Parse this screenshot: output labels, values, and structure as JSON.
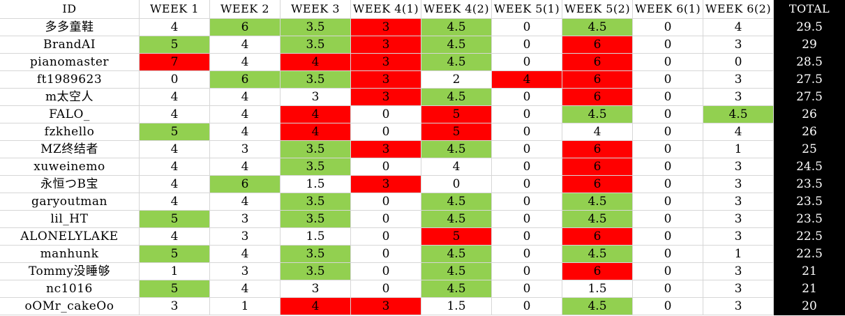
{
  "headers": [
    "ID",
    "WEEK 1",
    "WEEK 2",
    "WEEK 3",
    "WEEK 4(1)",
    "WEEK 4(2)",
    "WEEK 5(1)",
    "WEEK 5(2)",
    "WEEK 6(1)",
    "WEEK 6(2)",
    "TOTAL"
  ],
  "colors": {
    "green": "#92d050",
    "red": "#ff0000",
    "white": "#ffffff",
    "total_bg": "#000000",
    "total_fg": "#ffffff"
  },
  "rows": [
    {
      "id": "多多童鞋",
      "values": [
        "4",
        "6",
        "3.5",
        "3",
        "4.5",
        "0",
        "4.5",
        "0",
        "4"
      ],
      "fills": [
        "w",
        "g",
        "g",
        "r",
        "g",
        "w",
        "g",
        "w",
        "w"
      ],
      "total": "29.5"
    },
    {
      "id": "BrandAI",
      "values": [
        "5",
        "4",
        "3.5",
        "3",
        "4.5",
        "0",
        "6",
        "0",
        "3"
      ],
      "fills": [
        "g",
        "w",
        "g",
        "r",
        "g",
        "w",
        "r",
        "w",
        "w"
      ],
      "total": "29"
    },
    {
      "id": "pianomaster",
      "values": [
        "7",
        "4",
        "4",
        "3",
        "4.5",
        "0",
        "6",
        "0",
        "0"
      ],
      "fills": [
        "r",
        "w",
        "r",
        "r",
        "g",
        "w",
        "r",
        "w",
        "w"
      ],
      "total": "28.5"
    },
    {
      "id": "ft1989623",
      "values": [
        "0",
        "6",
        "3.5",
        "3",
        "2",
        "4",
        "6",
        "0",
        "3"
      ],
      "fills": [
        "w",
        "g",
        "g",
        "r",
        "w",
        "r",
        "r",
        "w",
        "w"
      ],
      "total": "27.5"
    },
    {
      "id": "m太空人",
      "values": [
        "4",
        "4",
        "3",
        "3",
        "4.5",
        "0",
        "6",
        "0",
        "3"
      ],
      "fills": [
        "w",
        "w",
        "w",
        "r",
        "g",
        "w",
        "r",
        "w",
        "w"
      ],
      "total": "27.5"
    },
    {
      "id": "FALO_",
      "values": [
        "4",
        "4",
        "4",
        "0",
        "5",
        "0",
        "4.5",
        "0",
        "4.5"
      ],
      "fills": [
        "w",
        "w",
        "r",
        "w",
        "r",
        "w",
        "g",
        "w",
        "g"
      ],
      "total": "26"
    },
    {
      "id": "fzkhello",
      "values": [
        "5",
        "4",
        "4",
        "0",
        "5",
        "0",
        "4",
        "0",
        "4"
      ],
      "fills": [
        "g",
        "w",
        "r",
        "w",
        "r",
        "w",
        "w",
        "w",
        "w"
      ],
      "total": "26"
    },
    {
      "id": "MZ终结者",
      "values": [
        "4",
        "3",
        "3.5",
        "3",
        "4.5",
        "0",
        "6",
        "0",
        "1"
      ],
      "fills": [
        "w",
        "w",
        "g",
        "r",
        "g",
        "w",
        "r",
        "w",
        "w"
      ],
      "total": "25"
    },
    {
      "id": "xuweinemo",
      "values": [
        "4",
        "4",
        "3.5",
        "0",
        "4",
        "0",
        "6",
        "0",
        "3"
      ],
      "fills": [
        "w",
        "w",
        "g",
        "w",
        "w",
        "w",
        "r",
        "w",
        "w"
      ],
      "total": "24.5"
    },
    {
      "id": "永恒つB宝",
      "values": [
        "4",
        "6",
        "1.5",
        "3",
        "0",
        "0",
        "6",
        "0",
        "3"
      ],
      "fills": [
        "w",
        "g",
        "w",
        "r",
        "w",
        "w",
        "r",
        "w",
        "w"
      ],
      "total": "23.5"
    },
    {
      "id": "garyoutman",
      "values": [
        "4",
        "4",
        "3.5",
        "0",
        "4.5",
        "0",
        "4.5",
        "0",
        "3"
      ],
      "fills": [
        "w",
        "w",
        "g",
        "w",
        "g",
        "w",
        "g",
        "w",
        "w"
      ],
      "total": "23.5"
    },
    {
      "id": "lil_HT",
      "values": [
        "5",
        "3",
        "3.5",
        "0",
        "4.5",
        "0",
        "4.5",
        "0",
        "3"
      ],
      "fills": [
        "g",
        "w",
        "g",
        "w",
        "g",
        "w",
        "g",
        "w",
        "w"
      ],
      "total": "23.5"
    },
    {
      "id": "ALONELYLAKE",
      "values": [
        "4",
        "3",
        "1.5",
        "0",
        "5",
        "0",
        "6",
        "0",
        "3"
      ],
      "fills": [
        "w",
        "w",
        "w",
        "w",
        "r",
        "w",
        "r",
        "w",
        "w"
      ],
      "total": "22.5"
    },
    {
      "id": "manhunk",
      "values": [
        "5",
        "4",
        "3.5",
        "0",
        "4.5",
        "0",
        "4.5",
        "0",
        "1"
      ],
      "fills": [
        "g",
        "w",
        "g",
        "w",
        "g",
        "w",
        "g",
        "w",
        "w"
      ],
      "total": "22.5"
    },
    {
      "id": "Tommy没睡够",
      "values": [
        "1",
        "3",
        "3.5",
        "0",
        "4.5",
        "0",
        "6",
        "0",
        "3"
      ],
      "fills": [
        "w",
        "w",
        "g",
        "w",
        "g",
        "w",
        "r",
        "w",
        "w"
      ],
      "total": "21"
    },
    {
      "id": "nc1016",
      "values": [
        "5",
        "4",
        "3",
        "0",
        "4.5",
        "0",
        "1.5",
        "0",
        "3"
      ],
      "fills": [
        "g",
        "w",
        "w",
        "w",
        "g",
        "w",
        "w",
        "w",
        "w"
      ],
      "total": "21"
    },
    {
      "id": "oOMr_cakeOo",
      "values": [
        "3",
        "1",
        "4",
        "3",
        "1.5",
        "0",
        "4.5",
        "0",
        "3"
      ],
      "fills": [
        "w",
        "w",
        "r",
        "r",
        "w",
        "w",
        "g",
        "w",
        "w"
      ],
      "total": "20"
    }
  ]
}
